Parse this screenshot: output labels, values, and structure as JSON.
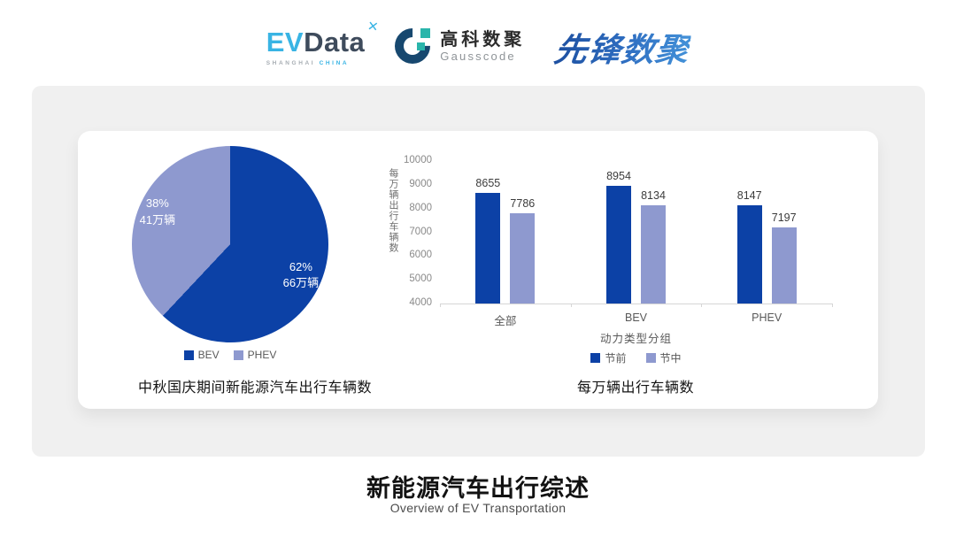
{
  "header": {
    "evdata": {
      "ev": "EV",
      "data": "Data",
      "spark_icon": "x-spark",
      "sub_left": "SHANGHAI",
      "sub_right": "CHINA"
    },
    "gausscode": {
      "cn": "高科数聚",
      "en": "Gausscode"
    },
    "pioneer": {
      "text": "先锋数聚"
    }
  },
  "footer": {
    "title": "新能源汽车出行综述",
    "subtitle": "Overview of EV Transportation"
  },
  "colors": {
    "series_primary": "#0c41a6",
    "series_secondary": "#8e99cf",
    "panel_bg": "#f0f0f0",
    "evdata_blue": "#39b4e4",
    "evdata_dark": "#3e4b5c",
    "gauss_navy": "#17486f",
    "gauss_teal": "#2ab5ab",
    "pioneer_blue": "#2f6fc2"
  },
  "chart_data": [
    {
      "type": "pie",
      "title": "中秋国庆期间新能源汽车出行车辆数",
      "start_angle_deg": 0,
      "direction": "clockwise",
      "legend_position": "bottom",
      "slices": [
        {
          "label": "BEV",
          "percent": 62,
          "value_label": "66万辆",
          "color": "#0c41a6"
        },
        {
          "label": "PHEV",
          "percent": 38,
          "value_label": "41万辆",
          "color": "#8e99cf"
        }
      ]
    },
    {
      "type": "bar",
      "title": "每万辆出行车辆数",
      "xlabel": "动力类型分组",
      "ylabel": "每万辆出行车辆数",
      "categories": [
        "全部",
        "BEV",
        "PHEV"
      ],
      "series": [
        {
          "name": "节前",
          "values": [
            8655,
            8954,
            8147
          ],
          "color": "#0c41a6"
        },
        {
          "name": "节中",
          "values": [
            7786,
            8134,
            7197
          ],
          "color": "#8e99cf"
        }
      ],
      "ylim": [
        4000,
        10000
      ],
      "ytick_step": 1000,
      "grid": false,
      "legend_position": "bottom"
    }
  ]
}
